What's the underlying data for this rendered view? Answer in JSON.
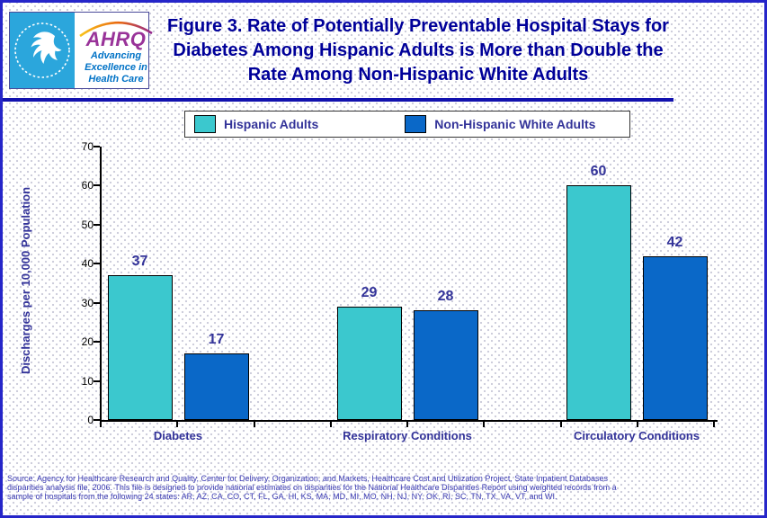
{
  "header": {
    "title_lines": [
      "Figure 3. Rate of Potentially Preventable Hospital Stays for",
      "Diabetes Among Hispanic Adults is More than Double the",
      "Rate Among Non-Hispanic White Adults"
    ]
  },
  "logo": {
    "ahrq": "AHRQ",
    "tagline": "Advancing Excellence in Health Care"
  },
  "chart_data": {
    "type": "bar",
    "title": "Figure 3. Rate of Potentially Preventable Hospital Stays for Diabetes Among Hispanic Adults is More than Double the Rate Among Non-Hispanic White Adults",
    "categories": [
      "Diabetes",
      "Respiratory Conditions",
      "Circulatory Conditions"
    ],
    "series": [
      {
        "name": "Hispanic Adults",
        "color": "#3BC8CE",
        "values": [
          37,
          29,
          60
        ]
      },
      {
        "name": "Non-Hispanic White Adults",
        "color": "#0A68C8",
        "values": [
          17,
          28,
          42
        ]
      }
    ],
    "xlabel": "",
    "ylabel": "Discharges per 10,000 Population",
    "ylim": [
      0,
      70
    ],
    "ytick_step": 10,
    "legend_position": "top",
    "grid": false,
    "value_labels_shown": true
  },
  "source": {
    "lines": [
      "Source: Agency for Healthcare Research and Quality, Center for Delivery, Organization, and Markets, Healthcare Cost and Utilization Project, State Inpatient Databases",
      "disparities analysis file, 2006. This file is designed to provide national estimates on disparities for the National Healthcare Disparities Report using weighted records from a",
      "sample of hospitals from the following 24 states: AR, AZ, CA, CO, CT, FL, GA, HI, KS, MA, MD, MI, MO, NH, NJ, NY, OK, RI, SC, TN, TX, VA, VT, and WI."
    ]
  },
  "colors": {
    "frame_border": "#2626C9",
    "divider_line": "#1212AE",
    "figure_title": "#000099",
    "axis_label": "#333399",
    "value_label": "#333399",
    "tick_label": "#000000",
    "source_text": "#3A3AB2",
    "hhs_panel_blue": "#2BA6DC",
    "ahrq_purple": "#993399",
    "tagline_blue": "#0072C6",
    "legend_border": "#333333",
    "background_dot": "#CBCBDA"
  }
}
